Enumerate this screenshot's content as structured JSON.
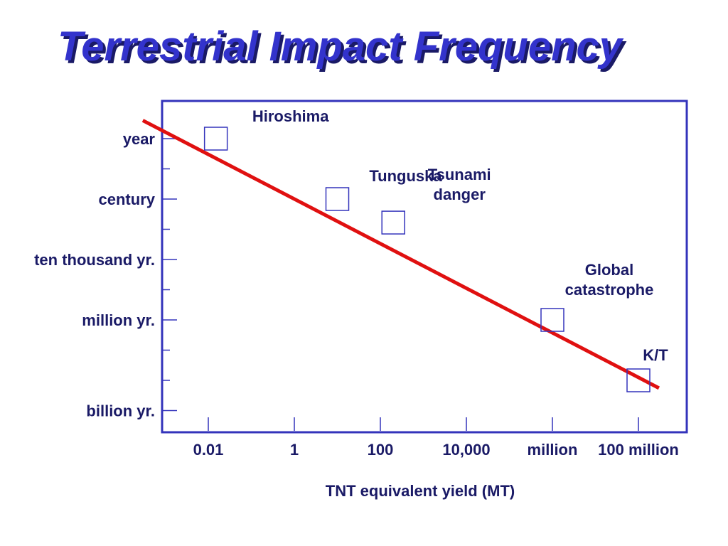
{
  "title": "Terrestrial Impact Frequency",
  "colors": {
    "title": "#3333cc",
    "title_shadow": "#1a1a66",
    "axes": "#3333bb",
    "text": "#1a1a66",
    "trend_line": "#e01010",
    "markers": "#3333bb"
  },
  "chart_data": {
    "type": "line",
    "xscale": "log",
    "xlabel": "TNT equivalent yield (MT)",
    "ylabel": "",
    "grid": false,
    "x_ticks": [
      {
        "value": 0.01,
        "label": "0.01"
      },
      {
        "value": 1,
        "label": "1"
      },
      {
        "value": 100,
        "label": "100"
      },
      {
        "value": 10000,
        "label": "10,000"
      },
      {
        "value": 1000000,
        "label": "million"
      },
      {
        "value": 100000000,
        "label": "100 million"
      }
    ],
    "y_ticks": [
      {
        "years": 1,
        "label": "year"
      },
      {
        "years": 10,
        "label": ""
      },
      {
        "years": 100,
        "label": "century"
      },
      {
        "years": 1000,
        "label": ""
      },
      {
        "years": 10000,
        "label": "ten thousand yr."
      },
      {
        "years": 100000,
        "label": ""
      },
      {
        "years": 1000000,
        "label": "million yr."
      },
      {
        "years": 10000000,
        "label": ""
      },
      {
        "years": 100000000,
        "label": ""
      },
      {
        "years": 1000000000,
        "label": "billion yr."
      }
    ],
    "trend_line": {
      "from": {
        "yield_mt": 0.0003,
        "interval_years": 0.25
      },
      "to": {
        "yield_mt": 300000000,
        "interval_years": 180000000
      }
    },
    "events": [
      {
        "label": [
          "Hiroshima"
        ],
        "yield_mt": 0.015,
        "interval_years": 1
      },
      {
        "label": [
          "Tunguska"
        ],
        "yield_mt": 10,
        "interval_years": 100
      },
      {
        "label": [
          "Tsunami",
          "danger"
        ],
        "yield_mt": 200,
        "interval_years": 600
      },
      {
        "label": [
          "Global",
          "catastrophe"
        ],
        "yield_mt": 1000000,
        "interval_years": 1000000
      },
      {
        "label": [
          "K/T"
        ],
        "yield_mt": 100000000,
        "interval_years": 100000000
      }
    ]
  }
}
